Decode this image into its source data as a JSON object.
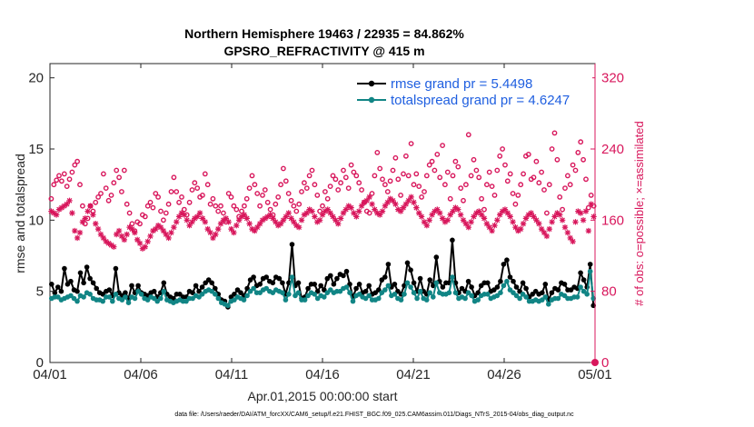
{
  "chart_data": {
    "type": "line",
    "title": "Northern Hemisphere 19463 / 22935 = 84.862%",
    "subtitle": "GPSRO_REFRACTIVITY @ 415 m",
    "xlabel": "Apr.01,2015 00:00:00 start",
    "ylabel": "rmse and totalspread",
    "y2label": "# of obs: o=possible; ×=assimilated",
    "footnote": "data file: /Users/raeder/DAI/ATM_forcXX/CAM6_setup/f.e21.FHIST_BGC.f09_025.CAM6assim.011/Diags_NTrS_2015-04/obs_diag_output.nc",
    "xlim": [
      0,
      30
    ],
    "ylim": [
      0,
      21
    ],
    "y2lim": [
      0,
      336
    ],
    "xticks": [
      0,
      5,
      10,
      15,
      20,
      25,
      30
    ],
    "xtick_labels": [
      "04/01",
      "04/06",
      "04/11",
      "04/16",
      "04/21",
      "04/26",
      "05/01"
    ],
    "yticks": [
      0,
      5,
      10,
      15,
      20
    ],
    "ytick_labels": [
      "0",
      "5",
      "10",
      "15",
      "20"
    ],
    "y2ticks": [
      0,
      80,
      160,
      240,
      320
    ],
    "y2tick_labels": [
      "0",
      "80",
      "160",
      "240",
      "320"
    ],
    "legend_position": "top-right",
    "series": [
      {
        "name": "rmse grand pr = 5.4498",
        "color": "#000000",
        "axis": "left",
        "style": "line-dot",
        "values": [
          5.5,
          4.9,
          5.3,
          5.0,
          6.6,
          5.5,
          5.7,
          5.1,
          5.0,
          6.3,
          5.6,
          6.7,
          5.9,
          5.6,
          5.2,
          4.9,
          4.8,
          5.0,
          5.1,
          4.7,
          6.6,
          4.9,
          4.7,
          4.9,
          4.5,
          5.4,
          4.9,
          5.4,
          4.9,
          4.8,
          4.7,
          4.9,
          5.0,
          4.6,
          4.9,
          5.6,
          4.8,
          4.6,
          4.5,
          4.8,
          4.8,
          4.6,
          4.6,
          5.0,
          4.9,
          5.4,
          5.0,
          5.3,
          5.6,
          5.8,
          5.6,
          5.2,
          4.8,
          4.4,
          4.3,
          3.9,
          4.6,
          4.8,
          5.1,
          4.9,
          4.7,
          5.2,
          5.8,
          6.0,
          5.4,
          5.5,
          5.9,
          6.0,
          5.7,
          5.6,
          6.0,
          5.9,
          5.6,
          4.8,
          5.6,
          8.3,
          5.4,
          5.6,
          4.5,
          4.6,
          5.2,
          5.5,
          5.5,
          5.0,
          5.4,
          5.1,
          5.9,
          6.1,
          5.5,
          5.9,
          6.2,
          6.1,
          6.4,
          5.5,
          4.6,
          5.2,
          5.5,
          4.9,
          5.0,
          5.4,
          4.8,
          4.9,
          5.1,
          5.8,
          6.0,
          6.9,
          5.3,
          5.5,
          5.0,
          4.8,
          5.4,
          7.0,
          6.5,
          5.6,
          5.0,
          5.9,
          5.0,
          4.8,
          5.8,
          5.4,
          7.4,
          5.7,
          5.3,
          5.6,
          5.6,
          8.6,
          5.6,
          4.9,
          5.2,
          5.0,
          5.7,
          5.3,
          4.7,
          4.9,
          5.4,
          5.6,
          5.6,
          5.0,
          5.1,
          5.3,
          5.7,
          6.9,
          7.2,
          6.0,
          5.7,
          5.3,
          5.0,
          5.6,
          5.2,
          4.6,
          4.8,
          5.0,
          4.8,
          4.9,
          5.5,
          4.4,
          4.9,
          5.2,
          5.1,
          5.6,
          5.5,
          5.1,
          5.1,
          5.3,
          5.2,
          6.3,
          5.8,
          5.3,
          6.9,
          4.0
        ]
      },
      {
        "name": "totalspread grand pr = 4.6247",
        "color": "#118585",
        "axis": "left",
        "style": "line-dot",
        "values": [
          4.5,
          4.6,
          4.6,
          4.4,
          4.5,
          4.6,
          4.7,
          4.5,
          4.3,
          4.7,
          4.6,
          4.9,
          4.8,
          4.5,
          4.4,
          4.4,
          4.3,
          4.6,
          4.6,
          4.3,
          4.8,
          4.5,
          4.4,
          4.6,
          4.2,
          4.6,
          4.5,
          5.0,
          4.8,
          4.5,
          4.4,
          4.6,
          4.5,
          4.3,
          4.5,
          5.0,
          4.4,
          4.3,
          4.2,
          4.3,
          4.4,
          4.3,
          4.3,
          4.5,
          4.5,
          4.7,
          4.6,
          4.8,
          5.0,
          5.1,
          5.0,
          4.8,
          4.5,
          4.2,
          4.1,
          4.0,
          4.3,
          4.4,
          4.6,
          4.5,
          4.4,
          4.7,
          5.0,
          5.2,
          4.9,
          4.9,
          5.1,
          5.2,
          5.0,
          4.9,
          5.1,
          5.0,
          4.9,
          4.4,
          4.8,
          6.0,
          4.7,
          4.9,
          4.4,
          4.4,
          4.7,
          4.9,
          4.8,
          4.5,
          4.7,
          4.6,
          4.9,
          5.1,
          4.9,
          5.0,
          5.0,
          5.2,
          5.3,
          4.9,
          4.3,
          4.7,
          4.8,
          4.6,
          4.5,
          4.7,
          4.4,
          4.4,
          4.5,
          4.9,
          5.1,
          5.4,
          4.7,
          4.8,
          4.5,
          4.4,
          4.8,
          5.6,
          5.3,
          4.9,
          4.5,
          5.0,
          4.5,
          4.4,
          4.9,
          4.6,
          5.6,
          4.9,
          4.8,
          4.8,
          4.9,
          6.0,
          4.9,
          4.5,
          4.6,
          4.5,
          4.9,
          4.7,
          4.3,
          4.4,
          4.7,
          4.8,
          4.8,
          4.5,
          4.6,
          4.7,
          4.9,
          5.4,
          5.7,
          5.1,
          4.9,
          4.7,
          4.5,
          4.8,
          4.6,
          4.3,
          4.3,
          4.4,
          4.3,
          4.4,
          4.6,
          4.1,
          4.4,
          4.5,
          4.5,
          4.8,
          4.7,
          4.5,
          4.5,
          4.6,
          4.6,
          5.3,
          5.0,
          4.8,
          6.4,
          4.5
        ]
      },
      {
        "name": "# of obs possible",
        "color": "#d8175c",
        "axis": "right",
        "style": "circle",
        "values": [
          184,
          200,
          205,
          210,
          204,
          212,
          198,
          206,
          214,
          222,
          226,
          200,
          176,
          156,
          162,
          176,
          170,
          180,
          186,
          190,
          212,
          196,
          182,
          188,
          202,
          216,
          208,
          192,
          216,
          178,
          168,
          156,
          148,
          158,
          156,
          166,
          164,
          176,
          180,
          174,
          190,
          186,
          170,
          160,
          168,
          178,
          192,
          208,
          192,
          180,
          186,
          172,
          166,
          180,
          194,
          202,
          196,
          186,
          188,
          212,
          200,
          178,
          184,
          176,
          170,
          176,
          168,
          158,
          190,
          186,
          176,
          172,
          164,
          170,
          176,
          184,
          196,
          210,
          200,
          190,
          176,
          188,
          194,
          180,
          172,
          166,
          178,
          186,
          200,
          218,
          204,
          190,
          182,
          176,
          170,
          178,
          192,
          202,
          196,
          210,
          216,
          200,
          188,
          170,
          176,
          192,
          184,
          198,
          210,
          206,
          194,
          202,
          216,
          208,
          196,
          222,
          214,
          210,
          202,
          194,
          180,
          170,
          168,
          190,
          210,
          236,
          218,
          206,
          200,
          192,
          204,
          216,
          230,
          206,
          188,
          212,
          232,
          210,
          246,
          200,
          212,
          198,
          186,
          192,
          210,
          222,
          226,
          216,
          234,
          208,
          244,
          200,
          214,
          184,
          210,
          226,
          220,
          196,
          182,
          200,
          256,
          210,
          228,
          216,
          208,
          184,
          172,
          200,
          214,
          198,
          188,
          216,
          232,
          240,
          222,
          204,
          212,
          190,
          178,
          188,
          200,
          212,
          232,
          234,
          206,
          208,
          226,
          202,
          214,
          194,
          168,
          200,
          240,
          258,
          228,
          186,
          172,
          196,
          210,
          200,
          222,
          216,
          236,
          248,
          228,
          206,
          174,
          188,
          176
        ]
      },
      {
        "name": "# of obs assimilated",
        "color": "#d8175c",
        "axis": "right",
        "style": "star",
        "values": [
          170,
          168,
          166,
          172,
          174,
          176,
          178,
          182,
          168,
          148,
          140,
          146,
          158,
          162,
          170,
          176,
          166,
          156,
          150,
          144,
          140,
          136,
          134,
          132,
          130,
          144,
          148,
          142,
          138,
          144,
          152,
          150,
          146,
          138,
          134,
          128,
          130,
          136,
          142,
          148,
          150,
          154,
          152,
          148,
          144,
          140,
          146,
          152,
          158,
          164,
          168,
          166,
          160,
          154,
          158,
          162,
          164,
          168,
          162,
          158,
          150,
          146,
          140,
          144,
          150,
          156,
          160,
          162,
          158,
          150,
          146,
          154,
          160,
          164,
          166,
          162,
          156,
          150,
          148,
          152,
          156,
          160,
          162,
          164,
          166,
          162,
          158,
          154,
          156,
          160,
          164,
          168,
          162,
          158,
          154,
          152,
          160,
          166,
          168,
          172,
          170,
          164,
          158,
          160,
          166,
          170,
          172,
          168,
          164,
          160,
          156,
          162,
          168,
          172,
          176,
          174,
          168,
          164,
          170,
          176,
          180,
          182,
          186,
          178,
          172,
          168,
          166,
          170,
          176,
          180,
          184,
          182,
          178,
          172,
          170,
          174,
          178,
          182,
          186,
          180,
          174,
          168,
          164,
          158,
          154,
          160,
          166,
          170,
          172,
          168,
          162,
          158,
          160,
          166,
          170,
          174,
          172,
          166,
          160,
          156,
          152,
          158,
          164,
          168,
          170,
          166,
          162,
          156,
          152,
          148,
          154,
          160,
          166,
          170,
          172,
          168,
          164,
          158,
          152,
          148,
          150,
          156,
          162,
          166,
          168,
          164,
          160,
          156,
          150,
          146,
          142,
          150,
          158,
          164,
          168,
          166,
          160,
          152,
          146,
          140,
          136,
          158,
          170,
          168,
          160,
          170,
          148,
          178,
          164
        ]
      }
    ]
  }
}
